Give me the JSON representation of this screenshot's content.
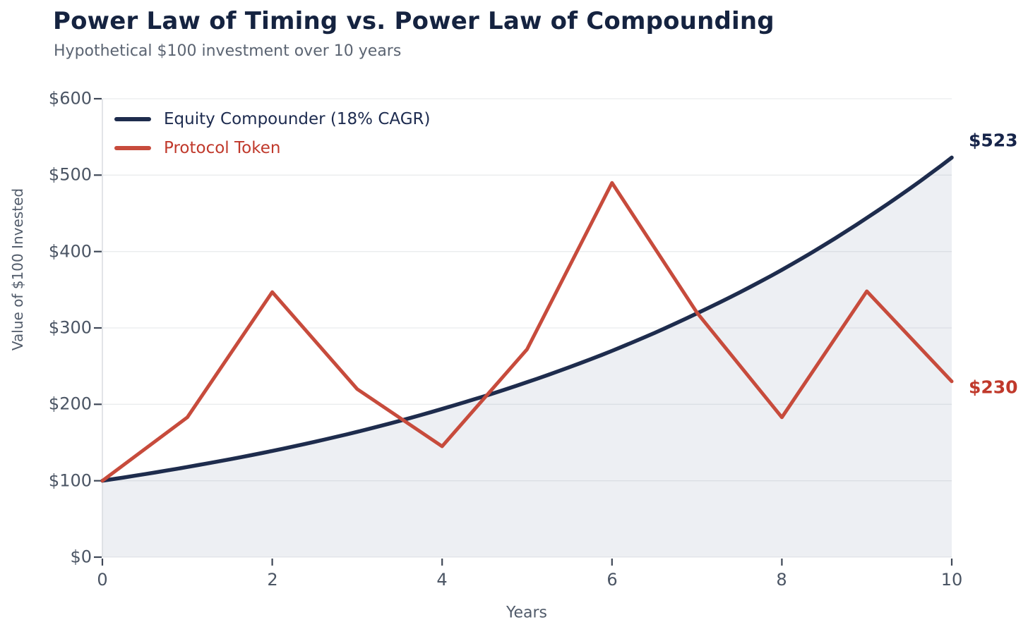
{
  "header": {
    "title": "Power Law of Timing vs. Power Law of Compounding",
    "subtitle": "Hypothetical $100 investment over 10 years"
  },
  "chart_data": {
    "type": "line",
    "title": "Power Law of Timing vs. Power Law of Compounding",
    "subtitle": "Hypothetical $100 investment over 10 years",
    "xlabel": "Years",
    "ylabel": "Value of $100 Invested",
    "x": [
      0,
      1,
      2,
      3,
      4,
      5,
      6,
      7,
      8,
      9,
      10
    ],
    "xlim": [
      0,
      10
    ],
    "ylim": [
      0,
      600
    ],
    "x_ticks": [
      "0",
      "2",
      "4",
      "6",
      "8",
      "10"
    ],
    "x_tick_values": [
      0,
      2,
      4,
      6,
      8,
      10
    ],
    "y_ticks": [
      "$0",
      "$100",
      "$200",
      "$300",
      "$400",
      "$500",
      "$600"
    ],
    "y_tick_values": [
      0,
      100,
      200,
      300,
      400,
      500,
      600
    ],
    "grid": "horizontal",
    "legend_position": "top-left",
    "series": [
      {
        "name": "Equity Compounder (18% CAGR)",
        "values": [
          100,
          118,
          139,
          164,
          194,
          229,
          270,
          319,
          376,
          444,
          523
        ],
        "line_color": "#1e2c4d",
        "label_color": "#1d2b4f",
        "interpolation": "exponential",
        "area_fill": true,
        "fill_color": "#edeff3",
        "end_label": "$523",
        "end_label_color": "#17254a"
      },
      {
        "name": "Protocol Token",
        "values": [
          100,
          183,
          347,
          220,
          145,
          272,
          490,
          320,
          183,
          348,
          230
        ],
        "line_color": "#c74b3c",
        "label_color": "#c0392b",
        "interpolation": "linear",
        "area_fill": false,
        "end_label": "$230",
        "end_label_color": "#c0392b"
      }
    ],
    "styles": {
      "grid_color": "rgba(140,148,163,0.18)",
      "spine_color": "#d8dbe0",
      "tick_mark_color": "#3e4756",
      "tick_label_color": "#4b5564"
    }
  }
}
